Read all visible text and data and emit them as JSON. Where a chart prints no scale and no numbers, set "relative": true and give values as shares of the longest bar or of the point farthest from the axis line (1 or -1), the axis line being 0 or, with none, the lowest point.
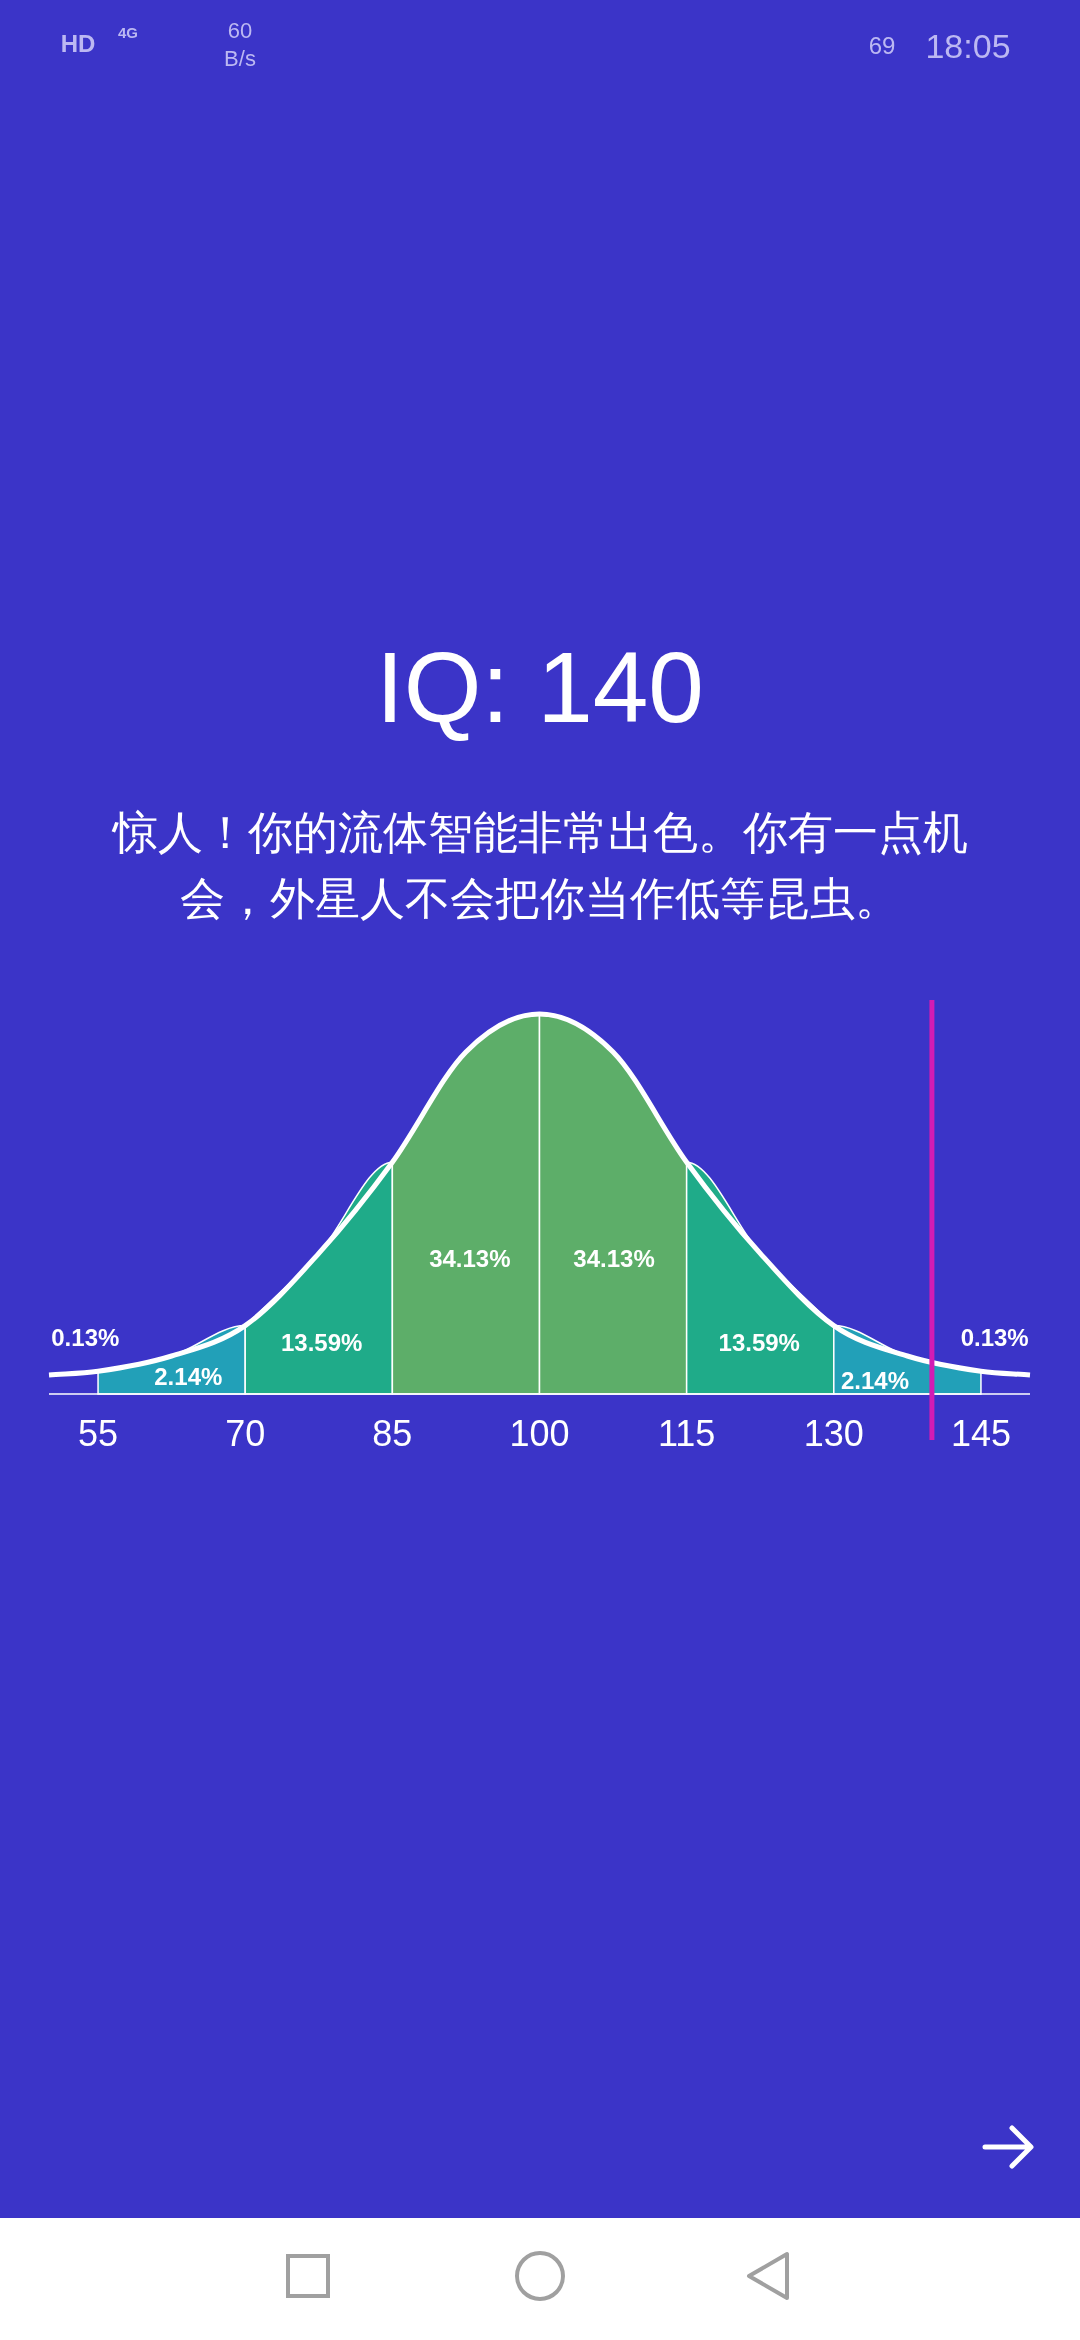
{
  "chart_data": {
    "type": "area",
    "relative": true,
    "title": "IQ: 140",
    "subtitle": "惊人！你的流体智能非常出色。你有一点机会，外星人不会把你当作低等昆虫。",
    "xlim": [
      50,
      150
    ],
    "xticks": [
      55,
      70,
      85,
      100,
      115,
      130,
      145
    ],
    "series": [
      {
        "color": "#22a0b8",
        "x": [
          55,
          62.5,
          70
        ],
        "values": [
          0.06,
          0.1,
          0.18
        ]
      },
      {
        "color": "#1fab89",
        "x": [
          70,
          77.5,
          85
        ],
        "values": [
          0.18,
          0.37,
          0.61
        ]
      },
      {
        "color": "#5dae69",
        "x": [
          85,
          92.5,
          100
        ],
        "values": [
          0.61,
          0.9,
          1
        ]
      },
      {
        "color": "#5dae69",
        "x": [
          100,
          107.5,
          115
        ],
        "values": [
          1,
          0.9,
          0.61
        ]
      },
      {
        "color": "#1fab89",
        "x": [
          115,
          122.5,
          130
        ],
        "values": [
          0.61,
          0.37,
          0.18
        ]
      },
      {
        "color": "#22a0b8",
        "x": [
          130,
          137.5,
          145
        ],
        "values": [
          0.18,
          0.1,
          0.06
        ]
      },
      {
        "type": "line",
        "color": "#ffffff",
        "x": [
          50,
          55,
          62.5,
          70,
          77.5,
          85,
          92.5,
          100,
          107.5,
          115,
          122.5,
          130,
          137.5,
          145,
          150
        ],
        "values": [
          0.05,
          0.06,
          0.1,
          0.18,
          0.37,
          0.61,
          0.9,
          1,
          0.9,
          0.61,
          0.37,
          0.18,
          0.1,
          0.06,
          0.05
        ]
      }
    ],
    "ref_lines": [
      {
        "axis": "x",
        "value": 140,
        "color": "#d21cb4"
      }
    ],
    "annotations": [
      "0.13%",
      "2.14%",
      "13.59%",
      "34.13%",
      "34.13%",
      "13.59%",
      "2.14%",
      "0.13%",
      "HD",
      "4G",
      "60",
      "B/s",
      "69",
      "18:05"
    ]
  }
}
